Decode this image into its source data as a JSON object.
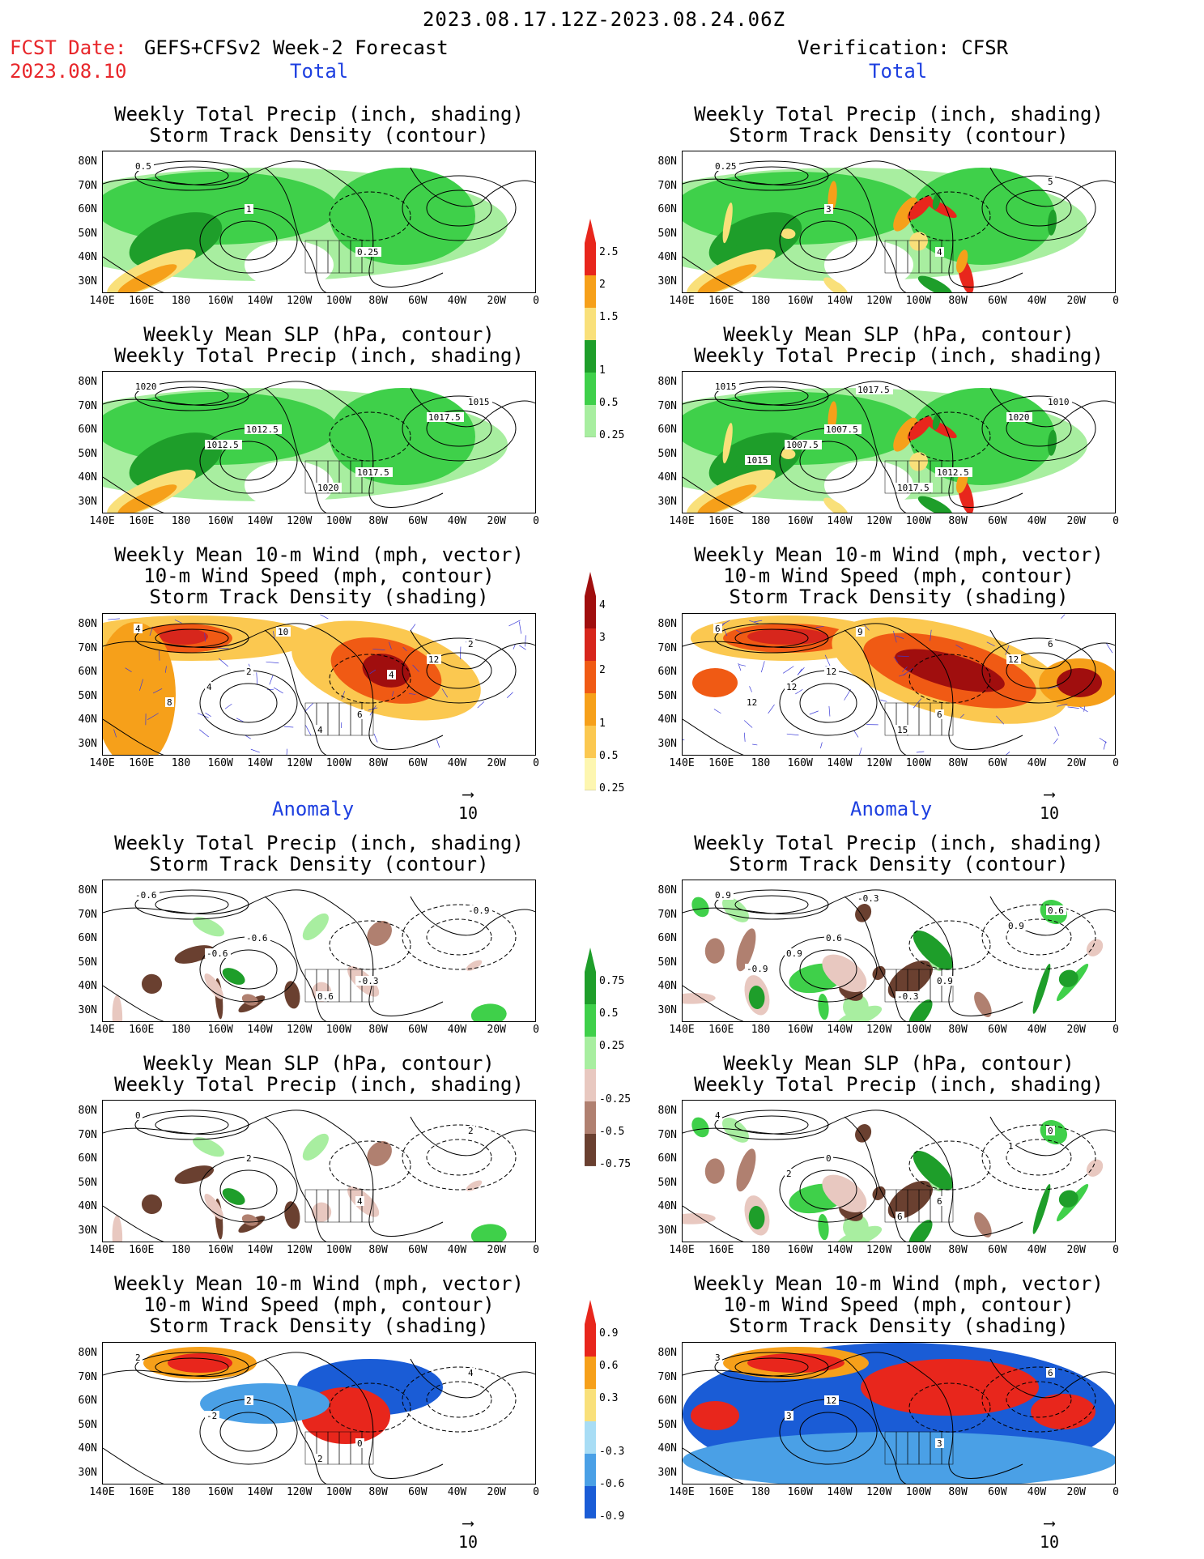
{
  "header": {
    "period": "2023.08.17.12Z-2023.08.24.06Z",
    "fcst_label": "FCST Date:",
    "forecast_name": "GEFS+CFSv2 Week-2 Forecast",
    "fcst_date": "2023.08.10",
    "verification": "Verification: CFSR"
  },
  "sections": {
    "total": "Total",
    "anomaly": "Anomaly"
  },
  "panel_titles": {
    "precip_storm": "Weekly Total Precip (inch, shading)\nStorm Track Density (contour)",
    "slp_precip": "Weekly Mean SLP (hPa, contour)\nWeekly Total Precip (inch, shading)",
    "wind_storm": "Weekly Mean 10-m Wind (mph, vector)\n10-m Wind Speed (mph, contour)\nStorm Track Density (shading)"
  },
  "lat_labels": [
    "80N",
    "70N",
    "60N",
    "50N",
    "40N",
    "30N"
  ],
  "lon_labels": [
    "140E",
    "160E",
    "180",
    "160W",
    "140W",
    "120W",
    "100W",
    "80W",
    "60W",
    "40W",
    "20W",
    "0"
  ],
  "vector_ref": "10",
  "colorbars": {
    "precip_total": {
      "labels": [
        "2.5",
        "2",
        "1.5",
        "1",
        "0.5",
        "0.25"
      ],
      "colors": [
        "#e8261c",
        "#f6a01a",
        "#f9e07a",
        "#1e9e2a",
        "#3fd04a",
        "#a8eea0"
      ]
    },
    "storm_total": {
      "labels": [
        "4",
        "3",
        "2",
        "1",
        "0.5",
        "0.25"
      ],
      "colors": [
        "#a00e0e",
        "#d7261c",
        "#f05a14",
        "#f6a01a",
        "#fbc850",
        "#fdf6b0"
      ]
    },
    "precip_anom": {
      "labels": [
        "0.75",
        "0.5",
        "0.25",
        "-0.25",
        "-0.5",
        "-0.75"
      ],
      "colors": [
        "#1e9e2a",
        "#3fd04a",
        "#a8eea0",
        "#e8c8c0",
        "#b08070",
        "#6a4030"
      ]
    },
    "storm_anom": {
      "labels": [
        "0.9",
        "0.6",
        "0.3",
        "-0.3",
        "-0.6",
        "-0.9"
      ],
      "colors": [
        "#e8261c",
        "#f6a01a",
        "#f9e07a",
        "#a8ddf5",
        "#4aa0e6",
        "#1a5cd6"
      ]
    }
  },
  "contour_labels": {
    "fc_precip": [
      "0.5",
      "1",
      "0.25"
    ],
    "vf_precip": [
      "0.25",
      "3",
      "4",
      "5"
    ],
    "fc_slp": [
      "1020",
      "1012.5",
      "1017.5",
      "1015",
      "1012.5",
      "1020",
      "1017.5"
    ],
    "vf_slp": [
      "1015",
      "1007.5",
      "1012.5",
      "1010",
      "1007.5",
      "1017.5",
      "1020",
      "1015",
      "1017.5"
    ],
    "fc_wind": [
      "4",
      "2",
      "6",
      "2",
      "4",
      "4",
      "12",
      "8",
      "10",
      "4"
    ],
    "vf_wind": [
      "6",
      "12",
      "6",
      "6",
      "12",
      "15",
      "12",
      "12",
      "9"
    ],
    "fc_pa": [
      "-0.6",
      "-0.6",
      "-0.3",
      "-0.9",
      "-0.6",
      "0.6"
    ],
    "vf_pa": [
      "0.9",
      "0.6",
      "0.9",
      "0.6",
      "0.9",
      "-0.3",
      "0.9",
      "-0.9",
      "-0.3"
    ],
    "fc_sa": [
      "0",
      "2",
      "4",
      "2"
    ],
    "vf_sa": [
      "4",
      "0",
      "6",
      "0",
      "2",
      "6",
      "1"
    ],
    "fc_wa": [
      "2",
      "2",
      "0",
      "4",
      "-2",
      "2"
    ],
    "vf_wa": [
      "3",
      "12",
      "3",
      "6",
      "3"
    ]
  }
}
